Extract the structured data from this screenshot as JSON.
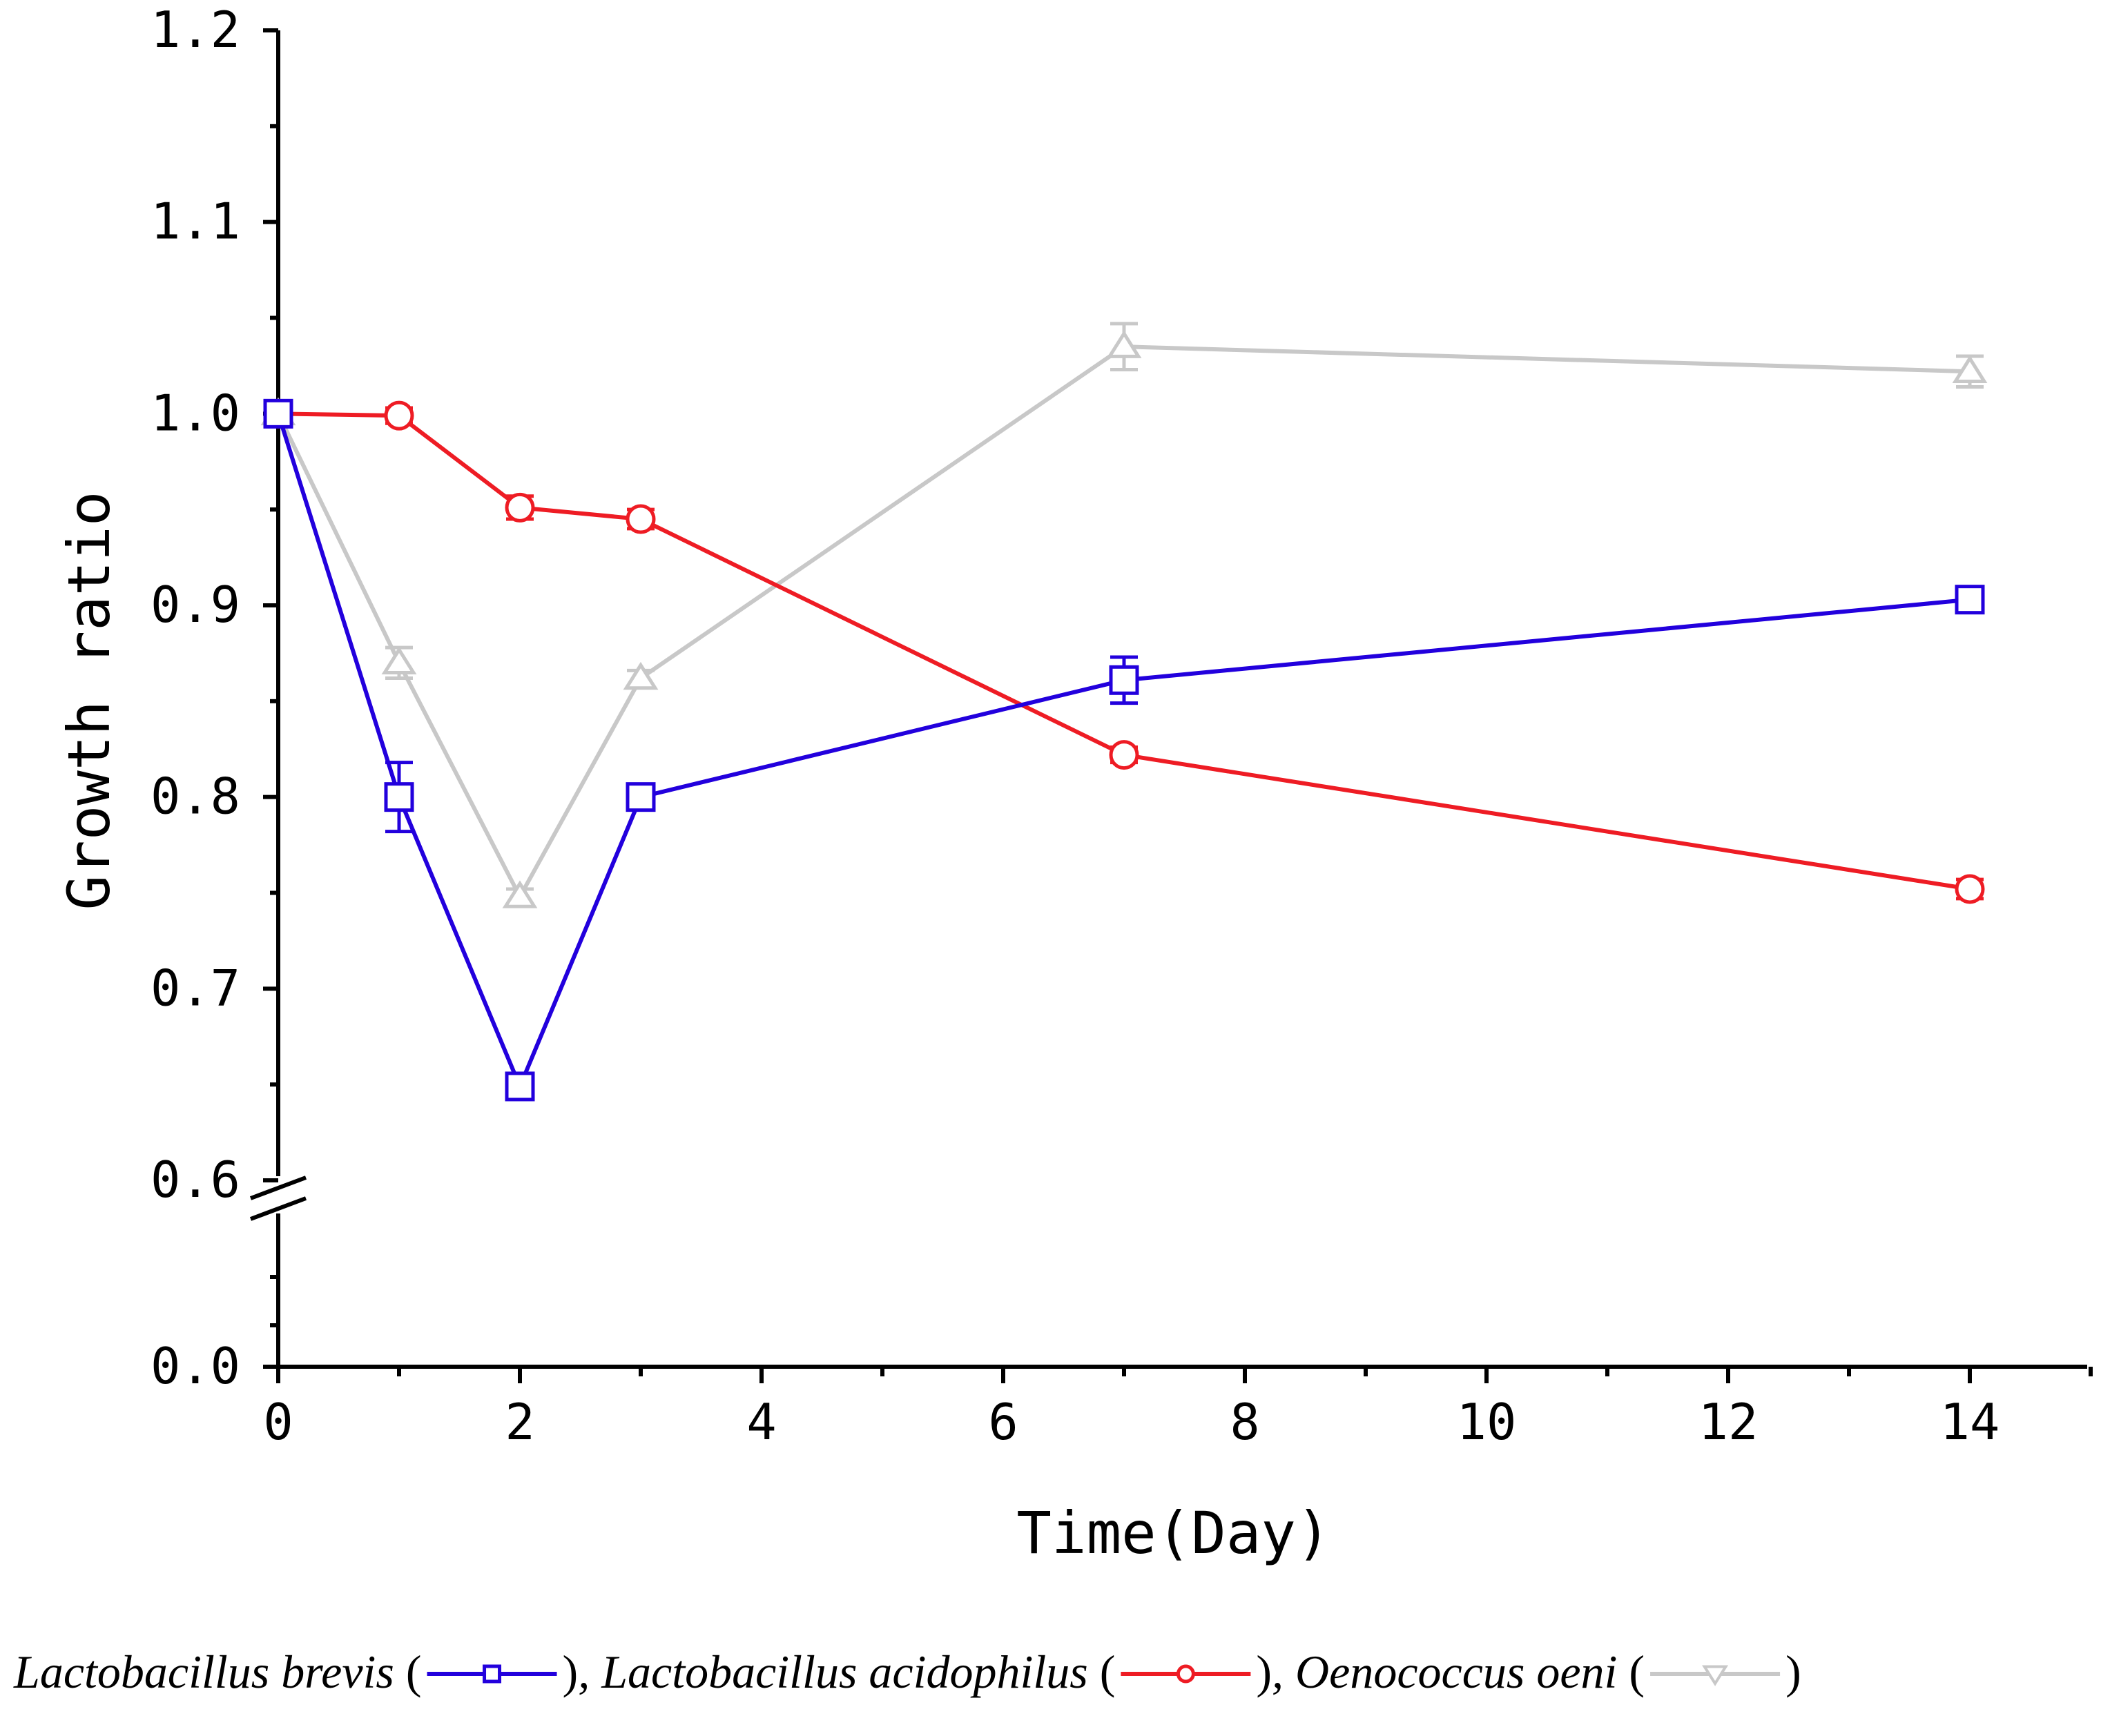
{
  "chart_data": {
    "type": "line",
    "xlabel": "Time(Day)",
    "ylabel": "Growth ratio",
    "xlim": [
      0,
      15
    ],
    "xticks": [
      "0",
      "2",
      "4",
      "6",
      "8",
      "10",
      "12",
      "14"
    ],
    "yticks_upper": [
      "0.6",
      "0.7",
      "0.8",
      "0.9",
      "1.0",
      "1.1",
      "1.2"
    ],
    "yticks_lower": [
      "0.0"
    ],
    "ylim_upper": [
      0.6,
      1.2
    ],
    "y_axis_break": true,
    "series": [
      {
        "name": "Lactobacillus brevis",
        "color": "#2200dd",
        "marker": "square",
        "x": [
          0,
          1,
          2,
          3,
          7,
          14
        ],
        "values": [
          1.0,
          0.8,
          0.649,
          0.8,
          0.861,
          0.903
        ],
        "errors": [
          0.003,
          0.018,
          0.003,
          0.005,
          0.012,
          0.005
        ]
      },
      {
        "name": "Lactobacillus acidophilus",
        "color": "#ee1c24",
        "marker": "circle",
        "x": [
          0,
          1,
          2,
          3,
          7,
          14
        ],
        "values": [
          1.0,
          0.999,
          0.951,
          0.945,
          0.822,
          0.752
        ],
        "errors": [
          0.002,
          0.004,
          0.006,
          0.005,
          0.004,
          0.005
        ]
      },
      {
        "name": "Oenococcus oeni",
        "color": "#c8c8c8",
        "marker": "triangle",
        "x": [
          0,
          1,
          2,
          3,
          7,
          14
        ],
        "values": [
          1.0,
          0.87,
          0.748,
          0.862,
          1.035,
          1.022
        ],
        "errors": [
          0.003,
          0.008,
          0.004,
          0.004,
          0.012,
          0.008
        ]
      }
    ],
    "legend": {
      "position": "bottom",
      "entries": [
        {
          "name": "Lactobacillus brevis",
          "separator": ", "
        },
        {
          "name": "Lactobacillus acidophilus",
          "separator": ", "
        },
        {
          "name": "Oenococcus oeni",
          "separator": ""
        }
      ]
    }
  }
}
